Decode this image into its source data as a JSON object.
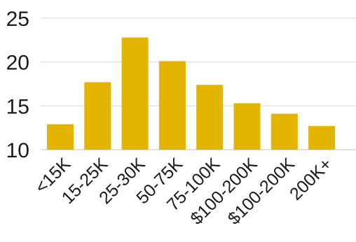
{
  "chart_data": {
    "type": "bar",
    "title": "",
    "xlabel": "",
    "ylabel": "",
    "categories": [
      "<15K",
      "15-25K",
      "25-30K",
      "50-75K",
      "75-100K",
      "$100-200K",
      "$100-200K",
      "200K+"
    ],
    "values": [
      12.9,
      17.7,
      22.8,
      20.1,
      17.4,
      15.3,
      14.1,
      12.7
    ],
    "ylim": [
      10,
      25
    ],
    "yticks": [
      10,
      15,
      20,
      25
    ],
    "ytick_labels": [
      "10",
      "15",
      "20",
      "25"
    ],
    "grid": true,
    "legend": "none",
    "bar_color": "#E3B400"
  }
}
